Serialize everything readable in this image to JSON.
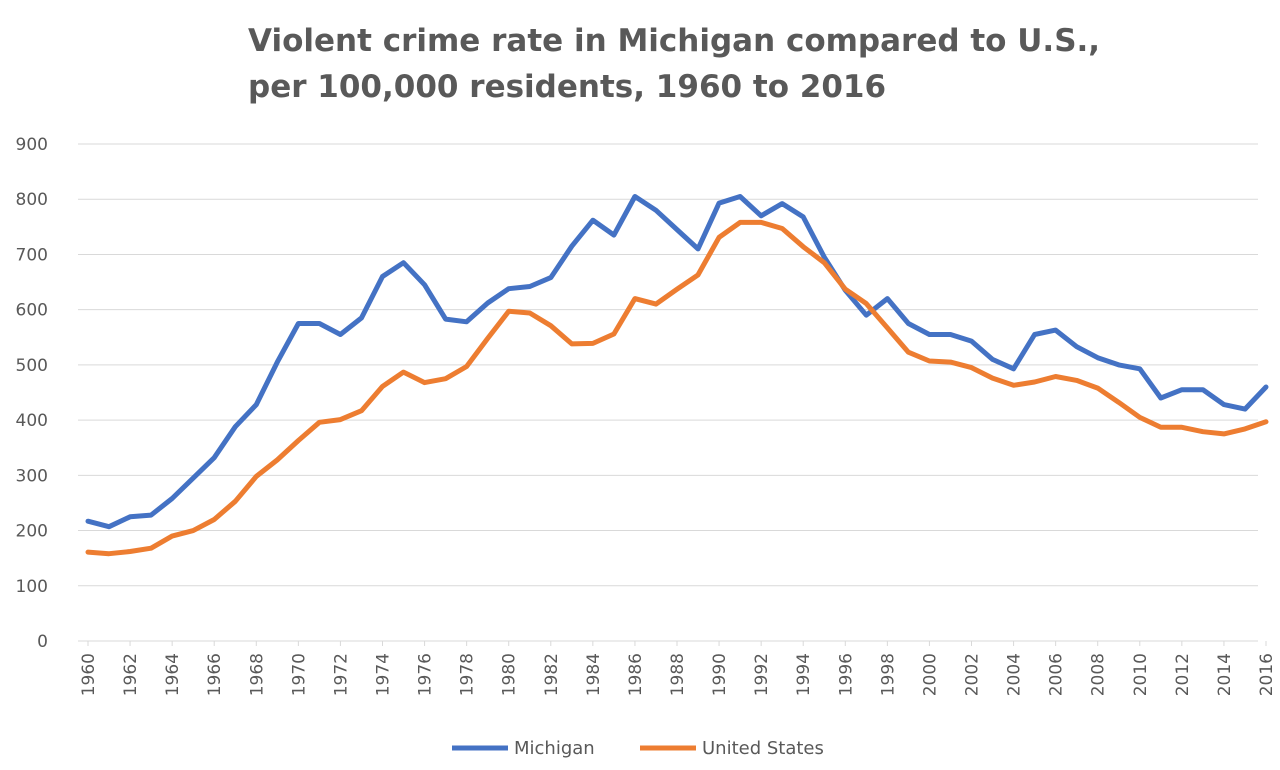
{
  "chart_data": {
    "type": "line",
    "title_line1": "Violent crime rate in Michigan compared to U.S.,",
    "title_line2": "per 100,000 residents, 1960 to 2016",
    "xlabel": "",
    "ylabel": "",
    "ylim": [
      0,
      900
    ],
    "yticks": [
      0,
      100,
      200,
      300,
      400,
      500,
      600,
      700,
      800,
      900
    ],
    "xticks": [
      1960,
      1962,
      1964,
      1966,
      1968,
      1970,
      1972,
      1974,
      1976,
      1978,
      1980,
      1982,
      1984,
      1986,
      1988,
      1990,
      1992,
      1994,
      1996,
      1998,
      2000,
      2002,
      2004,
      2006,
      2008,
      2010,
      2012,
      2014,
      2016
    ],
    "grid": true,
    "legend_position": "bottom",
    "x": [
      1960,
      1961,
      1962,
      1963,
      1964,
      1965,
      1966,
      1967,
      1968,
      1969,
      1970,
      1971,
      1972,
      1973,
      1974,
      1975,
      1976,
      1977,
      1978,
      1979,
      1980,
      1981,
      1982,
      1983,
      1984,
      1985,
      1986,
      1987,
      1988,
      1989,
      1990,
      1991,
      1992,
      1993,
      1994,
      1995,
      1996,
      1997,
      1998,
      1999,
      2000,
      2001,
      2002,
      2003,
      2004,
      2005,
      2006,
      2007,
      2008,
      2009,
      2010,
      2011,
      2012,
      2013,
      2014,
      2015,
      2016
    ],
    "series": [
      {
        "name": "Michigan",
        "color": "#4472C4",
        "values": [
          217,
          207,
          225,
          228,
          258,
          295,
          332,
          388,
          428,
          505,
          575,
          575,
          555,
          585,
          660,
          685,
          645,
          583,
          578,
          612,
          638,
          642,
          658,
          715,
          762,
          735,
          805,
          780,
          745,
          710,
          793,
          805,
          770,
          792,
          768,
          695,
          635,
          590,
          620,
          575,
          555,
          555,
          543,
          510,
          493,
          555,
          563,
          533,
          513,
          500,
          493,
          440,
          455,
          455,
          428,
          420,
          460
        ]
      },
      {
        "name": "United States",
        "color": "#ED7D31",
        "values": [
          161,
          158,
          162,
          168,
          190,
          200,
          220,
          253,
          298,
          328,
          363,
          396,
          401,
          417,
          461,
          487,
          468,
          475,
          497,
          548,
          597,
          594,
          571,
          538,
          539,
          556,
          620,
          610,
          637,
          663,
          731,
          758,
          758,
          747,
          714,
          685,
          637,
          611,
          567,
          523,
          507,
          505,
          495,
          476,
          463,
          469,
          479,
          472,
          458,
          432,
          405,
          387,
          387,
          379,
          375,
          384,
          397
        ]
      }
    ]
  }
}
